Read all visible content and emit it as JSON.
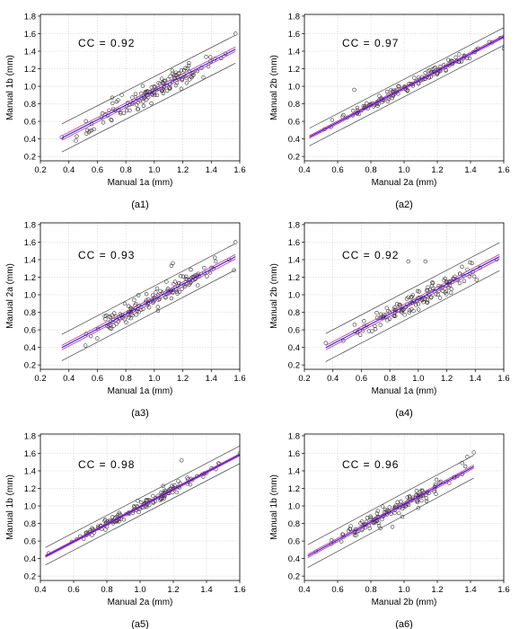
{
  "figure": {
    "colors": {
      "frame": "#000000",
      "grid": "#c8c8c8",
      "fit_line": "#1a1aff",
      "ci_line": "#d43c8c",
      "pi_line": "#444444",
      "marker": "#333333"
    }
  },
  "chart_data": [
    {
      "type": "scatter",
      "id": "a1",
      "panel_label": "(a1)",
      "cc_text": "CC = 0.92",
      "xlabel": "Manual 1a (mm)",
      "ylabel": "Manual 1b (mm)",
      "xlim": [
        0.2,
        1.6
      ],
      "ylim": [
        0.15,
        1.82
      ],
      "xticks": [
        0.2,
        0.4,
        0.6,
        0.8,
        1.0,
        1.2,
        1.4,
        1.6
      ],
      "xtick_labels": [
        "0.2",
        "0.4",
        "0.6",
        "0.8",
        "1.0",
        "1.2",
        "1.4",
        "1.6"
      ],
      "yticks": [
        0.2,
        0.4,
        0.6,
        0.8,
        1.0,
        1.2,
        1.4,
        1.6,
        1.8
      ],
      "ytick_labels": [
        "0.2",
        "0.4",
        "0.6",
        "0.8",
        "1.0",
        "1.2",
        "1.4",
        "1.6",
        "1.8"
      ],
      "grid": true,
      "regression": {
        "x_range": [
          0.35,
          1.57
        ],
        "slope": 0.83,
        "intercept": 0.12,
        "prediction_band": 0.16,
        "confidence_band": 0.025
      },
      "points_summary": {
        "n": 140,
        "x_range": [
          0.35,
          1.57
        ],
        "scatter_sd": 0.08,
        "outliers": [
          [
            0.35,
            0.42
          ],
          [
            1.57,
            1.6
          ],
          [
            1.5,
            1.37
          ],
          [
            1.47,
            1.32
          ]
        ]
      }
    },
    {
      "type": "scatter",
      "id": "a2",
      "panel_label": "(a2)",
      "cc_text": "CC = 0.97",
      "xlabel": "Manual 2a (mm)",
      "ylabel": "Manual 2b (mm)",
      "xlim": [
        0.4,
        1.6
      ],
      "ylim": [
        0.15,
        1.82
      ],
      "xticks": [
        0.4,
        0.6,
        0.8,
        1.0,
        1.2,
        1.4,
        1.6
      ],
      "xtick_labels": [
        "0.4",
        "0.6",
        "0.8",
        "1.0",
        "1.2",
        "1.4",
        "1.6"
      ],
      "yticks": [
        0.2,
        0.4,
        0.6,
        0.8,
        1.0,
        1.2,
        1.4,
        1.6,
        1.8
      ],
      "ytick_labels": [
        "0.2",
        "0.4",
        "0.6",
        "0.8",
        "1.0",
        "1.2",
        "1.4",
        "1.6",
        "1.8"
      ],
      "grid": true,
      "regression": {
        "x_range": [
          0.43,
          1.6
        ],
        "slope": 0.98,
        "intercept": 0.0,
        "prediction_band": 0.1,
        "confidence_band": 0.015
      },
      "points_summary": {
        "n": 140,
        "x_range": [
          0.43,
          1.6
        ],
        "scatter_sd": 0.045,
        "outliers": [
          [
            0.7,
            0.96
          ],
          [
            1.6,
            1.43
          ],
          [
            1.38,
            1.32
          ]
        ]
      }
    },
    {
      "type": "scatter",
      "id": "a3",
      "panel_label": "(a3)",
      "cc_text": "CC = 0.93",
      "xlabel": "Manual 1a (mm)",
      "ylabel": "Manual 2a (mm)",
      "xlim": [
        0.2,
        1.6
      ],
      "ylim": [
        0.15,
        1.82
      ],
      "xticks": [
        0.2,
        0.4,
        0.6,
        0.8,
        1.0,
        1.2,
        1.4,
        1.6
      ],
      "xtick_labels": [
        "0.2",
        "0.4",
        "0.6",
        "0.8",
        "1.0",
        "1.2",
        "1.4",
        "1.6"
      ],
      "yticks": [
        0.2,
        0.4,
        0.6,
        0.8,
        1.0,
        1.2,
        1.4,
        1.6,
        1.8
      ],
      "ytick_labels": [
        "0.2",
        "0.4",
        "0.6",
        "0.8",
        "1.0",
        "1.2",
        "1.4",
        "1.6",
        "1.8"
      ],
      "grid": true,
      "regression": {
        "x_range": [
          0.35,
          1.57
        ],
        "slope": 0.85,
        "intercept": 0.1,
        "prediction_band": 0.15,
        "confidence_band": 0.025
      },
      "points_summary": {
        "n": 140,
        "x_range": [
          0.35,
          1.57
        ],
        "scatter_sd": 0.075,
        "outliers": [
          [
            1.57,
            1.6
          ],
          [
            1.56,
            1.28
          ],
          [
            1.13,
            1.36
          ],
          [
            1.12,
            1.33
          ]
        ]
      }
    },
    {
      "type": "scatter",
      "id": "a4",
      "panel_label": "(a4)",
      "cc_text": "CC = 0.92",
      "xlabel": "Manual 1a (mm)",
      "ylabel": "Manual 2b (mm)",
      "xlim": [
        0.2,
        1.6
      ],
      "ylim": [
        0.15,
        1.82
      ],
      "xticks": [
        0.2,
        0.4,
        0.6,
        0.8,
        1.0,
        1.2,
        1.4,
        1.6
      ],
      "xtick_labels": [
        "0.2",
        "0.4",
        "0.6",
        "0.8",
        "1.0",
        "1.2",
        "1.4",
        "1.6"
      ],
      "yticks": [
        0.2,
        0.4,
        0.6,
        0.8,
        1.0,
        1.2,
        1.4,
        1.6,
        1.8
      ],
      "ytick_labels": [
        "0.2",
        "0.4",
        "0.6",
        "0.8",
        "1.0",
        "1.2",
        "1.4",
        "1.6",
        "1.8"
      ],
      "grid": true,
      "regression": {
        "x_range": [
          0.35,
          1.57
        ],
        "slope": 0.85,
        "intercept": 0.1,
        "prediction_band": 0.16,
        "confidence_band": 0.025
      },
      "points_summary": {
        "n": 140,
        "x_range": [
          0.35,
          1.57
        ],
        "scatter_sd": 0.08,
        "outliers": [
          [
            0.93,
            1.38
          ],
          [
            1.05,
            1.38
          ],
          [
            1.55,
            1.4
          ],
          [
            0.35,
            0.45
          ]
        ]
      }
    },
    {
      "type": "scatter",
      "id": "a5",
      "panel_label": "(a5)",
      "cc_text": "CC = 0.98",
      "xlabel": "Manual 2a (mm)",
      "ylabel": "Manual 1b (mm)",
      "xlim": [
        0.4,
        1.6
      ],
      "ylim": [
        0.15,
        1.82
      ],
      "xticks": [
        0.4,
        0.6,
        0.8,
        1.0,
        1.2,
        1.4,
        1.6
      ],
      "xtick_labels": [
        "0.4",
        "0.6",
        "0.8",
        "1.0",
        "1.2",
        "1.4",
        "1.6"
      ],
      "yticks": [
        0.2,
        0.4,
        0.6,
        0.8,
        1.0,
        1.2,
        1.4,
        1.6,
        1.8
      ],
      "ytick_labels": [
        "0.2",
        "0.4",
        "0.6",
        "0.8",
        "1.0",
        "1.2",
        "1.4",
        "1.6",
        "1.8"
      ],
      "grid": true,
      "regression": {
        "x_range": [
          0.43,
          1.6
        ],
        "slope": 0.99,
        "intercept": 0.0,
        "prediction_band": 0.1,
        "confidence_band": 0.012
      },
      "points_summary": {
        "n": 150,
        "x_range": [
          0.43,
          1.6
        ],
        "scatter_sd": 0.04,
        "outliers": [
          [
            1.25,
            1.52
          ],
          [
            1.6,
            1.6
          ],
          [
            0.45,
            0.46
          ]
        ]
      }
    },
    {
      "type": "scatter",
      "id": "a6",
      "panel_label": "(a6)",
      "cc_text": "CC = 0.96",
      "xlabel": "Manual 2b (mm)",
      "ylabel": "Manual 1b (mm)",
      "xlim": [
        0.4,
        1.6
      ],
      "ylim": [
        0.15,
        1.82
      ],
      "xticks": [
        0.4,
        0.6,
        0.8,
        1.0,
        1.2,
        1.4,
        1.6
      ],
      "xtick_labels": [
        "0.4",
        "0.6",
        "0.8",
        "1.0",
        "1.2",
        "1.4",
        "1.6"
      ],
      "yticks": [
        0.2,
        0.4,
        0.6,
        0.8,
        1.0,
        1.2,
        1.4,
        1.6,
        1.8
      ],
      "ytick_labels": [
        "0.2",
        "0.4",
        "0.6",
        "0.8",
        "1.0",
        "1.2",
        "1.4",
        "1.6",
        "1.8"
      ],
      "grid": true,
      "regression": {
        "x_range": [
          0.42,
          1.42
        ],
        "slope": 1.02,
        "intercept": 0.0,
        "prediction_band": 0.13,
        "confidence_band": 0.018
      },
      "points_summary": {
        "n": 140,
        "x_range": [
          0.42,
          1.42
        ],
        "scatter_sd": 0.055,
        "outliers": [
          [
            1.42,
            1.61
          ],
          [
            0.93,
            0.76
          ],
          [
            1.38,
            1.56
          ],
          [
            1.35,
            1.49
          ]
        ]
      }
    }
  ]
}
